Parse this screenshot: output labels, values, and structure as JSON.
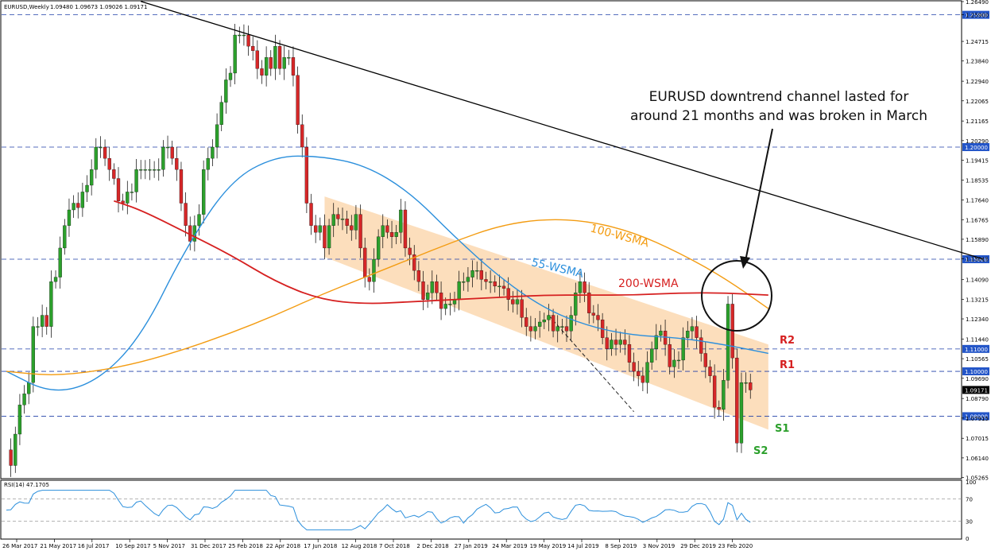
{
  "header": {
    "symbol_label": "EURUSD,Weekly",
    "ohlc_label": "1.09480 1.09673 1.09026 1.09171"
  },
  "rsi": {
    "label": "RSI(14) 47.1705",
    "scale_labels": [
      "100",
      "70",
      "30",
      "0"
    ],
    "levels": [
      70,
      30
    ],
    "ylim": [
      0,
      100
    ]
  },
  "annotation": {
    "line1": "EURUSD downtrend channel lasted for",
    "line2": "around 21 months and was broken in March"
  },
  "labels": {
    "ma100": "100-WSMA",
    "ma55": "55-WSMA",
    "ma200": "200-WSMA",
    "r2": "R2",
    "r1": "R1",
    "s1": "S1",
    "s2": "S2"
  },
  "colors": {
    "bull": "#2ca02c",
    "bear": "#d62728",
    "ma55": "#2b8fdc",
    "ma100": "#f39c12",
    "ma200": "#d62020",
    "channel": "#fbd8b0",
    "resistance": "#d62020",
    "support": "#2ca02c",
    "level_line": "#1f3fa8",
    "level_label_bg": "#2355c8",
    "rsi_line": "#2b8fdc",
    "price_box": "#000000"
  },
  "chart_data": {
    "type": "candlestick",
    "title": "EURUSD,Weekly",
    "ylim": [
      1.0525,
      1.2649
    ],
    "y_tick_labels": [
      "1.26490",
      "1.25900",
      "1.24715",
      "1.23840",
      "1.22940",
      "1.22065",
      "1.21165",
      "1.20290",
      "1.19415",
      "1.18535",
      "1.17640",
      "1.16765",
      "1.15890",
      "1.15015",
      "1.14090",
      "1.13215",
      "1.12340",
      "1.11440",
      "1.10565",
      "1.09690",
      "1.08790",
      "1.07915",
      "1.07015",
      "1.06140",
      "1.05265"
    ],
    "x_tick_labels": [
      "26 Mar 2017",
      "21 May 2017",
      "16 Jul 2017",
      "10 Sep 2017",
      "5 Nov 2017",
      "31 Dec 2017",
      "25 Feb 2018",
      "22 Apr 2018",
      "17 Jun 2018",
      "12 Aug 2018",
      "7 Oct 2018",
      "2 Dec 2018",
      "27 Jan 2019",
      "24 Mar 2019",
      "19 May 2019",
      "14 Jul 2019",
      "8 Sep 2019",
      "3 Nov 2019",
      "29 Dec 2019",
      "23 Feb 2020"
    ],
    "horizontal_levels": [
      {
        "value": 1.259,
        "label": "1.25900"
      },
      {
        "value": 1.2,
        "label": "1.20000"
      },
      {
        "value": 1.15,
        "label": "1.15000"
      },
      {
        "value": 1.11,
        "label": "1.11000"
      },
      {
        "value": 1.1,
        "label": "1.10000"
      },
      {
        "value": 1.08,
        "label": "1.08000"
      }
    ],
    "current_price": {
      "value": 1.09171,
      "label": "1.09171"
    },
    "close_series": [
      1.065,
      1.058,
      1.072,
      1.085,
      1.09,
      1.095,
      1.12,
      1.12,
      1.125,
      1.12,
      1.14,
      1.142,
      1.155,
      1.165,
      1.172,
      1.175,
      1.173,
      1.18,
      1.183,
      1.19,
      1.2,
      1.2,
      1.195,
      1.19,
      1.186,
      1.176,
      1.175,
      1.18,
      1.18,
      1.19,
      1.19,
      1.19,
      1.19,
      1.19,
      1.19,
      1.2,
      1.2,
      1.195,
      1.19,
      1.175,
      1.165,
      1.158,
      1.165,
      1.17,
      1.19,
      1.195,
      1.2,
      1.21,
      1.22,
      1.23,
      1.233,
      1.25,
      1.25,
      1.25,
      1.245,
      1.243,
      1.235,
      1.232,
      1.24,
      1.235,
      1.245,
      1.235,
      1.24,
      1.24,
      1.232,
      1.21,
      1.2,
      1.175,
      1.165,
      1.162,
      1.165,
      1.155,
      1.165,
      1.17,
      1.168,
      1.168,
      1.165,
      1.163,
      1.17,
      1.155,
      1.142,
      1.14,
      1.15,
      1.16,
      1.165,
      1.162,
      1.16,
      1.162,
      1.172,
      1.155,
      1.152,
      1.145,
      1.14,
      1.132,
      1.135,
      1.14,
      1.135,
      1.128,
      1.13,
      1.13,
      1.132,
      1.14,
      1.14,
      1.142,
      1.145,
      1.145,
      1.141,
      1.14,
      1.14,
      1.138,
      1.138,
      1.137,
      1.132,
      1.13,
      1.132,
      1.124,
      1.12,
      1.118,
      1.12,
      1.122,
      1.123,
      1.125,
      1.118,
      1.12,
      1.12,
      1.118,
      1.125,
      1.135,
      1.14,
      1.135,
      1.126,
      1.125,
      1.123,
      1.115,
      1.11,
      1.114,
      1.112,
      1.114,
      1.112,
      1.104,
      1.1,
      1.098,
      1.095,
      1.104,
      1.11,
      1.116,
      1.118,
      1.112,
      1.102,
      1.105,
      1.105,
      1.115,
      1.118,
      1.12,
      1.115,
      1.108,
      1.102,
      1.098,
      1.084,
      1.083,
      1.096,
      1.13,
      1.106,
      1.068,
      1.095,
      1.095,
      1.09171
    ],
    "ma_series": [
      {
        "name": "55-WSMA",
        "x_index": [
          0,
          10,
          20,
          30,
          40,
          50,
          60,
          70,
          80,
          90,
          100,
          110,
          120,
          130,
          140,
          150,
          160,
          170
        ],
        "values": [
          1.1,
          1.09,
          1.095,
          1.115,
          1.155,
          1.185,
          1.196,
          1.196,
          1.192,
          1.18,
          1.16,
          1.142,
          1.128,
          1.12,
          1.116,
          1.115,
          1.112,
          1.108
        ]
      },
      {
        "name": "100-WSMA",
        "x_index": [
          0,
          10,
          20,
          30,
          40,
          50,
          60,
          70,
          80,
          90,
          100,
          110,
          120,
          130,
          140,
          150,
          160,
          170
        ],
        "values": [
          1.1,
          1.098,
          1.1,
          1.104,
          1.11,
          1.117,
          1.125,
          1.134,
          1.142,
          1.15,
          1.158,
          1.165,
          1.168,
          1.167,
          1.162,
          1.153,
          1.142,
          1.128
        ]
      },
      {
        "name": "200-WSMA",
        "x_index": [
          24,
          30,
          40,
          50,
          60,
          70,
          80,
          90,
          100,
          110,
          120,
          130,
          140,
          150,
          160,
          170
        ],
        "values": [
          1.176,
          1.172,
          1.162,
          1.152,
          1.14,
          1.132,
          1.13,
          1.131,
          1.132,
          1.133,
          1.134,
          1.134,
          1.134,
          1.135,
          1.135,
          1.134
        ]
      }
    ],
    "channel": {
      "upper": [
        [
          71,
          1.178
        ],
        [
          170,
          1.112
        ]
      ],
      "lower": [
        [
          71,
          1.151
        ],
        [
          170,
          1.074
        ]
      ]
    },
    "trendline": [
      [
        30,
        1.265
      ],
      [
        218,
        1.15
      ]
    ],
    "inner_trend": [
      [
        121,
        1.125
      ],
      [
        140,
        1.082
      ]
    ],
    "grid": false
  }
}
